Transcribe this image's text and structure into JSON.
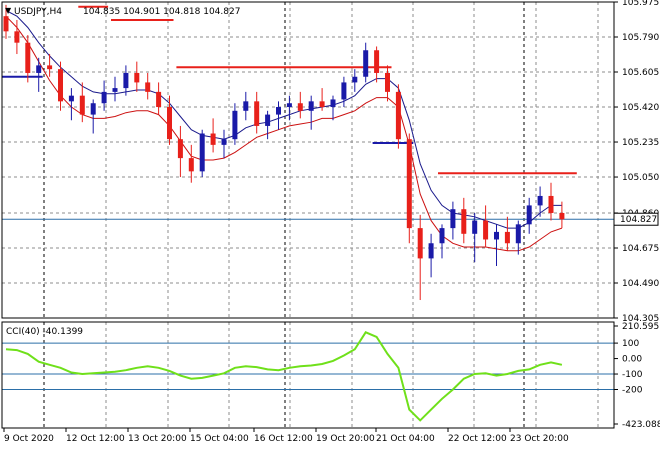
{
  "header": {
    "symbol_tf": "USDJPY,H4",
    "ohlc": "104.835 104.901 104.818 104.827"
  },
  "colors": {
    "background": "#ffffff",
    "grid": "#8c8c8c",
    "bull": "#1a1aa8",
    "bear": "#e8201a",
    "ma_fast": "#1a1a8c",
    "ma_slow": "#cc1010",
    "cci_line": "#6fe01a",
    "level_line": "#2b6fa8",
    "price_tag_bg": "#ffffff"
  },
  "chart_data": [
    {
      "type": "candlestick",
      "name": "price",
      "ylim": [
        104.305,
        105.975
      ],
      "y_ticks": [
        "105.975",
        "105.790",
        "105.605",
        "105.420",
        "105.235",
        "105.050",
        "104.860",
        "104.675",
        "104.490",
        "104.305"
      ],
      "current_price_label": "104.827",
      "current_price": 104.827,
      "x_ticks": [
        "9 Oct 2020",
        "12 Oct 12:00",
        "13 Oct 20:00",
        "15 Oct 04:00",
        "16 Oct 12:00",
        "19 Oct 20:00",
        "21 Oct 04:00",
        "22 Oct 12:00",
        "23 Oct 20:00"
      ],
      "candles": [
        [
          105.9,
          105.96,
          105.78,
          105.82
        ],
        [
          105.82,
          105.88,
          105.7,
          105.76
        ],
        [
          105.76,
          105.8,
          105.55,
          105.6
        ],
        [
          105.6,
          105.68,
          105.5,
          105.64
        ],
        [
          105.64,
          105.7,
          105.58,
          105.62
        ],
        [
          105.62,
          105.66,
          105.4,
          105.45
        ],
        [
          105.45,
          105.52,
          105.35,
          105.48
        ],
        [
          105.48,
          105.55,
          105.34,
          105.38
        ],
        [
          105.38,
          105.46,
          105.28,
          105.44
        ],
        [
          105.44,
          105.56,
          105.4,
          105.5
        ],
        [
          105.5,
          105.58,
          105.45,
          105.52
        ],
        [
          105.52,
          105.64,
          105.48,
          105.6
        ],
        [
          105.6,
          105.66,
          105.5,
          105.55
        ],
        [
          105.55,
          105.6,
          105.46,
          105.5
        ],
        [
          105.5,
          105.55,
          105.38,
          105.42
        ],
        [
          105.42,
          105.48,
          105.22,
          105.25
        ],
        [
          105.25,
          105.32,
          105.05,
          105.15
        ],
        [
          105.15,
          105.22,
          105.02,
          105.08
        ],
        [
          105.08,
          105.3,
          105.05,
          105.28
        ],
        [
          105.28,
          105.36,
          105.18,
          105.22
        ],
        [
          105.22,
          105.3,
          105.15,
          105.25
        ],
        [
          105.25,
          105.44,
          105.22,
          105.4
        ],
        [
          105.4,
          105.5,
          105.35,
          105.45
        ],
        [
          105.45,
          105.5,
          105.28,
          105.32
        ],
        [
          105.32,
          105.4,
          105.25,
          105.38
        ],
        [
          105.38,
          105.45,
          105.3,
          105.42
        ],
        [
          105.42,
          105.48,
          105.35,
          105.44
        ],
        [
          105.44,
          105.5,
          105.36,
          105.4
        ],
        [
          105.4,
          105.48,
          105.3,
          105.45
        ],
        [
          105.45,
          105.52,
          105.4,
          105.42
        ],
        [
          105.42,
          105.48,
          105.35,
          105.46
        ],
        [
          105.46,
          105.58,
          105.42,
          105.55
        ],
        [
          105.55,
          105.62,
          105.5,
          105.58
        ],
        [
          105.58,
          105.76,
          105.55,
          105.72
        ],
        [
          105.72,
          105.74,
          105.55,
          105.6
        ],
        [
          105.6,
          105.64,
          105.45,
          105.5
        ],
        [
          105.5,
          105.54,
          105.2,
          105.25
        ],
        [
          105.25,
          105.28,
          104.7,
          104.78
        ],
        [
          104.78,
          104.85,
          104.4,
          104.62
        ],
        [
          104.62,
          104.75,
          104.52,
          104.7
        ],
        [
          104.7,
          104.8,
          104.62,
          104.78
        ],
        [
          104.78,
          104.92,
          104.72,
          104.88
        ],
        [
          104.88,
          104.94,
          104.7,
          104.75
        ],
        [
          104.75,
          104.86,
          104.6,
          104.82
        ],
        [
          104.82,
          104.9,
          104.68,
          104.72
        ],
        [
          104.72,
          104.8,
          104.58,
          104.76
        ],
        [
          104.76,
          104.84,
          104.66,
          104.7
        ],
        [
          104.7,
          104.82,
          104.64,
          104.8
        ],
        [
          104.8,
          104.94,
          104.75,
          104.9
        ],
        [
          104.9,
          105.0,
          104.84,
          104.95
        ],
        [
          104.95,
          105.02,
          104.82,
          104.86
        ],
        [
          104.86,
          104.92,
          104.78,
          104.827
        ]
      ],
      "ma_fast": [
        105.93,
        105.9,
        105.84,
        105.76,
        105.69,
        105.63,
        105.58,
        105.53,
        105.5,
        105.49,
        105.49,
        105.5,
        105.51,
        105.51,
        105.49,
        105.44,
        105.37,
        105.3,
        105.27,
        105.26,
        105.25,
        105.27,
        105.31,
        105.33,
        105.34,
        105.36,
        105.38,
        105.4,
        105.41,
        105.42,
        105.43,
        105.45,
        105.48,
        105.54,
        105.57,
        105.57,
        105.52,
        105.35,
        105.12,
        104.98,
        104.9,
        104.86,
        104.85,
        104.84,
        104.82,
        104.8,
        104.78,
        104.78,
        104.81,
        104.86,
        104.9,
        104.9
      ],
      "ma_slow": [
        105.9,
        105.84,
        105.76,
        105.66,
        105.56,
        105.48,
        105.42,
        105.38,
        105.36,
        105.36,
        105.37,
        105.39,
        105.4,
        105.4,
        105.38,
        105.32,
        105.24,
        105.16,
        105.14,
        105.14,
        105.15,
        105.18,
        105.22,
        105.26,
        105.28,
        105.3,
        105.32,
        105.33,
        105.34,
        105.36,
        105.36,
        105.38,
        105.4,
        105.44,
        105.47,
        105.47,
        105.42,
        105.22,
        104.96,
        104.82,
        104.74,
        104.7,
        104.68,
        104.68,
        104.68,
        104.67,
        104.66,
        104.66,
        104.68,
        104.72,
        104.76,
        104.78
      ],
      "level_segments": [
        {
          "price": 105.58,
          "from": 0,
          "to": 3,
          "color": "blue"
        },
        {
          "price": 105.95,
          "from": 7,
          "to": 9,
          "color": "red"
        },
        {
          "price": 105.88,
          "from": 10,
          "to": 15,
          "color": "red"
        },
        {
          "price": 105.63,
          "from": 16,
          "to": 35,
          "color": "red"
        },
        {
          "price": 105.23,
          "from": 34,
          "to": 37,
          "color": "blue"
        },
        {
          "price": 105.07,
          "from": 40,
          "to": 52,
          "color": "red"
        }
      ]
    },
    {
      "type": "line",
      "name": "CCI",
      "label": "CCI(40) -40.1399",
      "ylim": [
        -423.0888,
        210.5951
      ],
      "y_ticks": [
        "210.5951",
        "100",
        "0.00",
        "-100",
        "-200",
        "-423.0888"
      ],
      "levels": [
        100,
        -100,
        -200
      ],
      "values": [
        60,
        55,
        30,
        -20,
        -40,
        -60,
        -90,
        -100,
        -95,
        -90,
        -85,
        -75,
        -60,
        -50,
        -60,
        -80,
        -110,
        -130,
        -125,
        -110,
        -95,
        -60,
        -50,
        -55,
        -70,
        -75,
        -60,
        -50,
        -45,
        -35,
        -15,
        20,
        60,
        170,
        140,
        30,
        -60,
        -330,
        -400,
        -330,
        -260,
        -200,
        -130,
        -100,
        -95,
        -110,
        -100,
        -80,
        -70,
        -40,
        -25,
        -40
      ]
    }
  ]
}
